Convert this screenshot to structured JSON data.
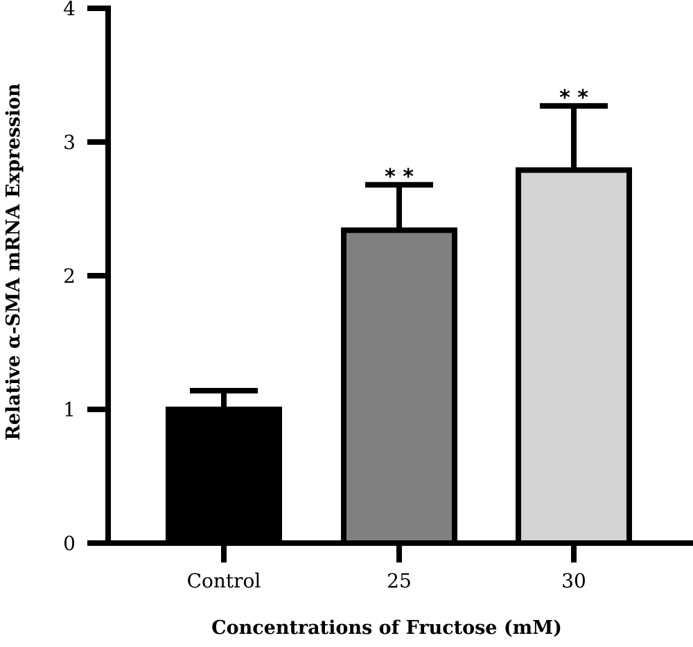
{
  "chart_data": {
    "type": "bar",
    "title": "",
    "xlabel": "Concentrations of Fructose (mM)",
    "ylabel": "Relative α-SMA mRNA Expression",
    "categories": [
      "Control",
      "25",
      "30"
    ],
    "values": [
      1.0,
      2.34,
      2.79
    ],
    "error_upper": [
      0.14,
      0.34,
      0.48
    ],
    "significance": [
      "",
      "* *",
      "* *"
    ],
    "bar_colors": [
      "#000000",
      "#808080",
      "#d3d3d3"
    ],
    "edge_color": "#000000",
    "ylim": [
      0,
      4
    ],
    "yticks": [
      "0",
      "1",
      "2",
      "3",
      "4"
    ],
    "grid": false,
    "legend": "none"
  }
}
